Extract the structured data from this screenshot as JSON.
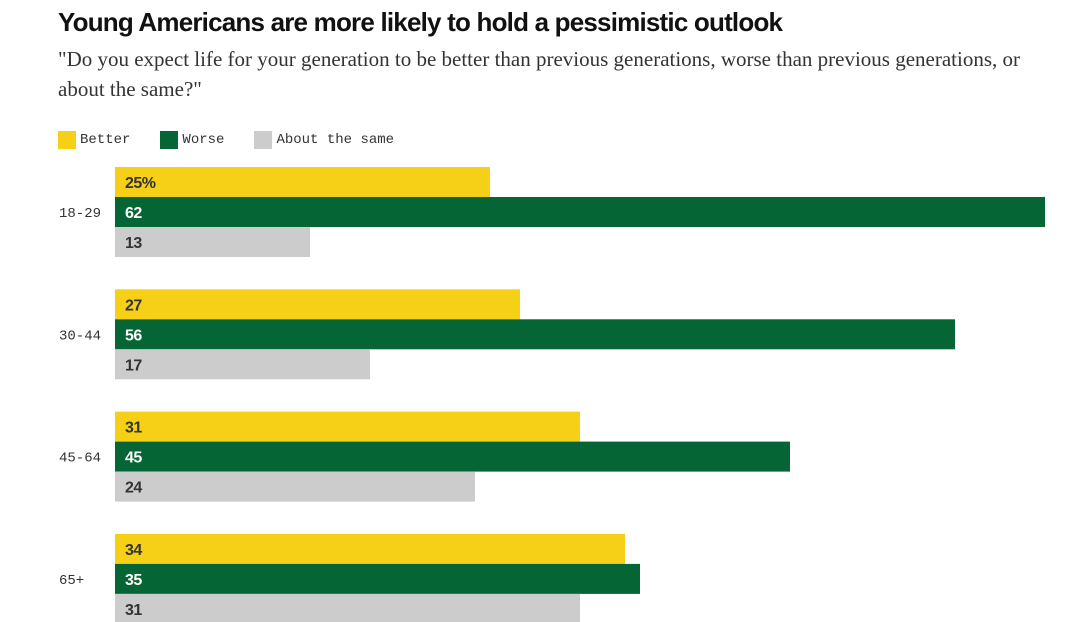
{
  "title": "Young Americans are more likely to hold a pessimistic outlook",
  "subtitle": "\"Do you expect life for your generation to be better than previous generations, worse than previous generations, or about the same?\"",
  "chart_data": {
    "type": "bar",
    "orientation": "horizontal",
    "categories": [
      "18-29",
      "30-44",
      "45-64",
      "65+"
    ],
    "series": [
      {
        "name": "Better",
        "color": "#f5d016",
        "label_color": "#333333",
        "values": [
          25,
          27,
          31,
          34
        ],
        "labels": [
          "25%",
          "27",
          "31",
          "34"
        ]
      },
      {
        "name": "Worse",
        "color": "#066535",
        "label_color": "#ffffff",
        "values": [
          62,
          56,
          45,
          35
        ],
        "labels": [
          "62",
          "56",
          "45",
          "35"
        ]
      },
      {
        "name": "About the same",
        "color": "#cccccc",
        "label_color": "#333333",
        "values": [
          13,
          17,
          24,
          31
        ],
        "labels": [
          "13",
          "17",
          "24",
          "31"
        ]
      }
    ],
    "xlim": [
      0,
      62
    ],
    "legend_position": "top-left",
    "grid": false
  }
}
